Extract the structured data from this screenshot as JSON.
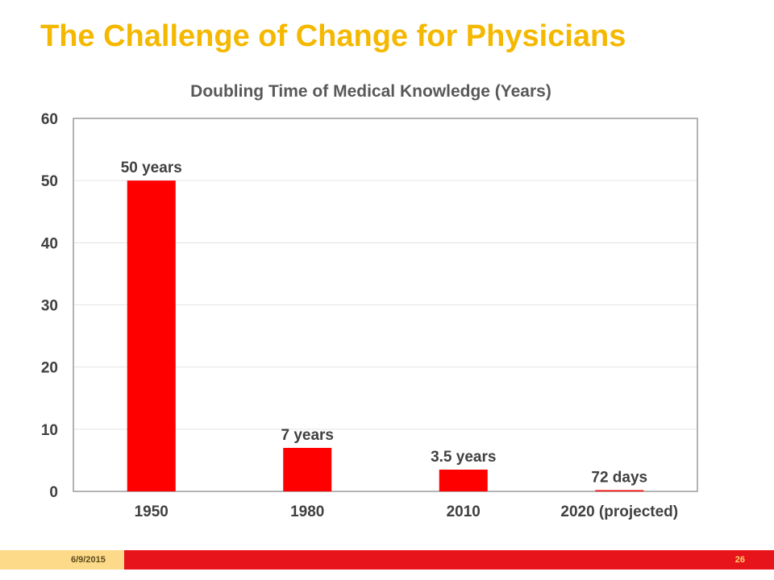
{
  "slide": {
    "title": "The Challenge of Change for Physicians",
    "footer_date": "6/9/2015",
    "page_number": "26"
  },
  "colors": {
    "title": "#f5b800",
    "bar": "#ff0000",
    "footer_left": "#fdd98a",
    "footer_right": "#e8141c"
  },
  "chart_data": {
    "type": "bar",
    "title": "Doubling Time of Medical Knowledge (Years)",
    "xlabel": "",
    "ylabel": "",
    "categories": [
      "1950",
      "1980",
      "2010",
      "2020 (projected)"
    ],
    "values": [
      50,
      7,
      3.5,
      0.2
    ],
    "data_labels": [
      "50 years",
      "7 years",
      "3.5 years",
      "72 days"
    ],
    "ylim": [
      0,
      60
    ],
    "yticks": [
      "0",
      "10",
      "20",
      "30",
      "40",
      "50",
      "60"
    ],
    "grid": true,
    "legend": "none"
  }
}
